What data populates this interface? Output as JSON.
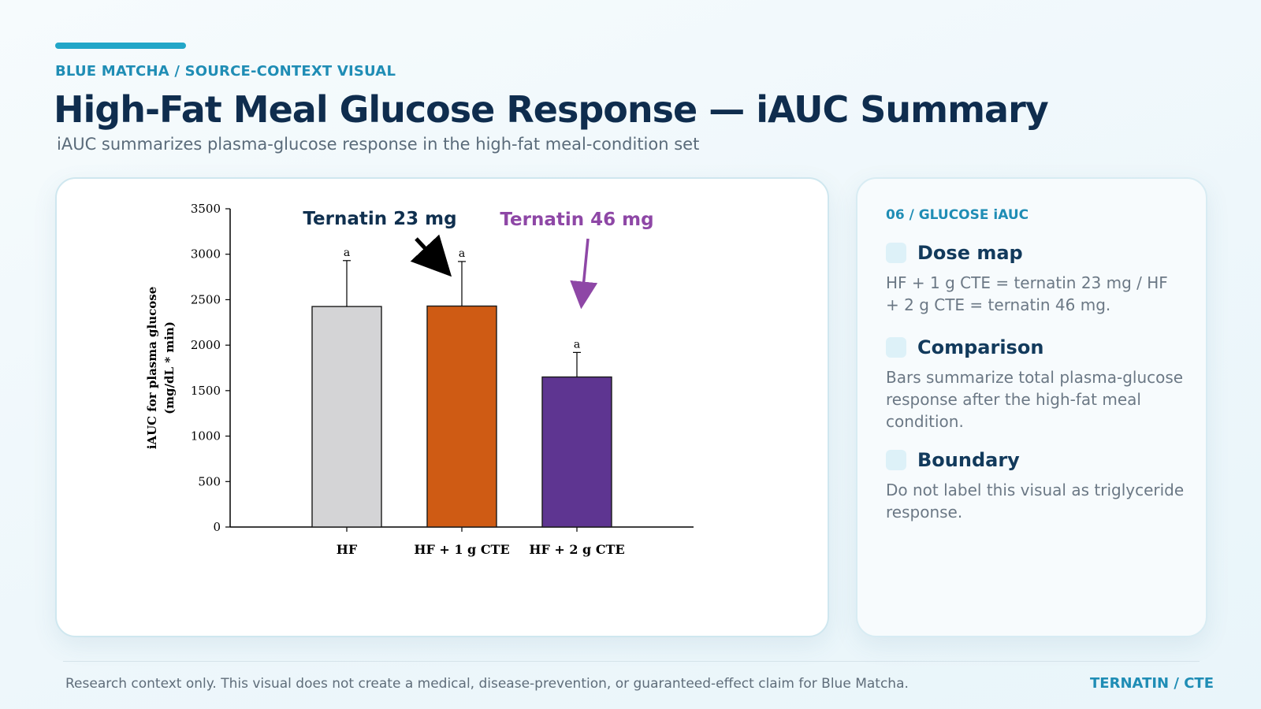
{
  "header": {
    "kicker": "BLUE MATCHA / SOURCE-CONTEXT VISUAL",
    "title": "High-Fat Meal Glucose Response — iAUC Summary",
    "subtitle": "iAUC summarizes plasma-glucose response in the high-fat meal-condition set"
  },
  "chart_data": {
    "type": "bar",
    "categories": [
      "HF",
      "HF + 1 g CTE",
      "HF + 2 g CTE"
    ],
    "values": [
      2425,
      2430,
      1650
    ],
    "errors": [
      505,
      490,
      270
    ],
    "significance": [
      "a",
      "a",
      "a"
    ],
    "bar_colors": [
      "#d4d4d6",
      "#cf5b14",
      "#5e3591"
    ],
    "ylabel_line1": "iAUC for plasma glucose",
    "ylabel_line2": "(mg/dL * min)",
    "xlabel": "",
    "ylim": [
      0,
      3500
    ],
    "yticks": [
      0,
      500,
      1000,
      1500,
      2000,
      2500,
      3000,
      3500
    ],
    "annotations": [
      {
        "text": "Ternatin 23 mg",
        "color": "#10304f",
        "target": "HF + 1 g CTE"
      },
      {
        "text": "Ternatin 46 mg",
        "color": "#8e47a6",
        "target": "HF + 2 g CTE"
      }
    ]
  },
  "side": {
    "kicker": "06 / GLUCOSE iAUC",
    "items": [
      {
        "title": "Dose map",
        "text": "HF + 1 g CTE = ternatin 23 mg / HF + 2 g CTE = ternatin 46 mg."
      },
      {
        "title": "Comparison",
        "text": "Bars summarize total plasma-glucose response after the high-fat meal condition."
      },
      {
        "title": "Boundary",
        "text": "Do not label this visual as triglyceride response."
      }
    ]
  },
  "footer": {
    "note": "Research context only. This visual does not create a medical, disease-prevention, or guaranteed-effect claim for Blue Matcha.",
    "tag": "TERNATIN / CTE"
  },
  "colors": {
    "accent": "#22a6c8",
    "title": "#0f2d4e",
    "annotation_dark": "#10304f",
    "annotation_purple": "#8e47a6"
  }
}
